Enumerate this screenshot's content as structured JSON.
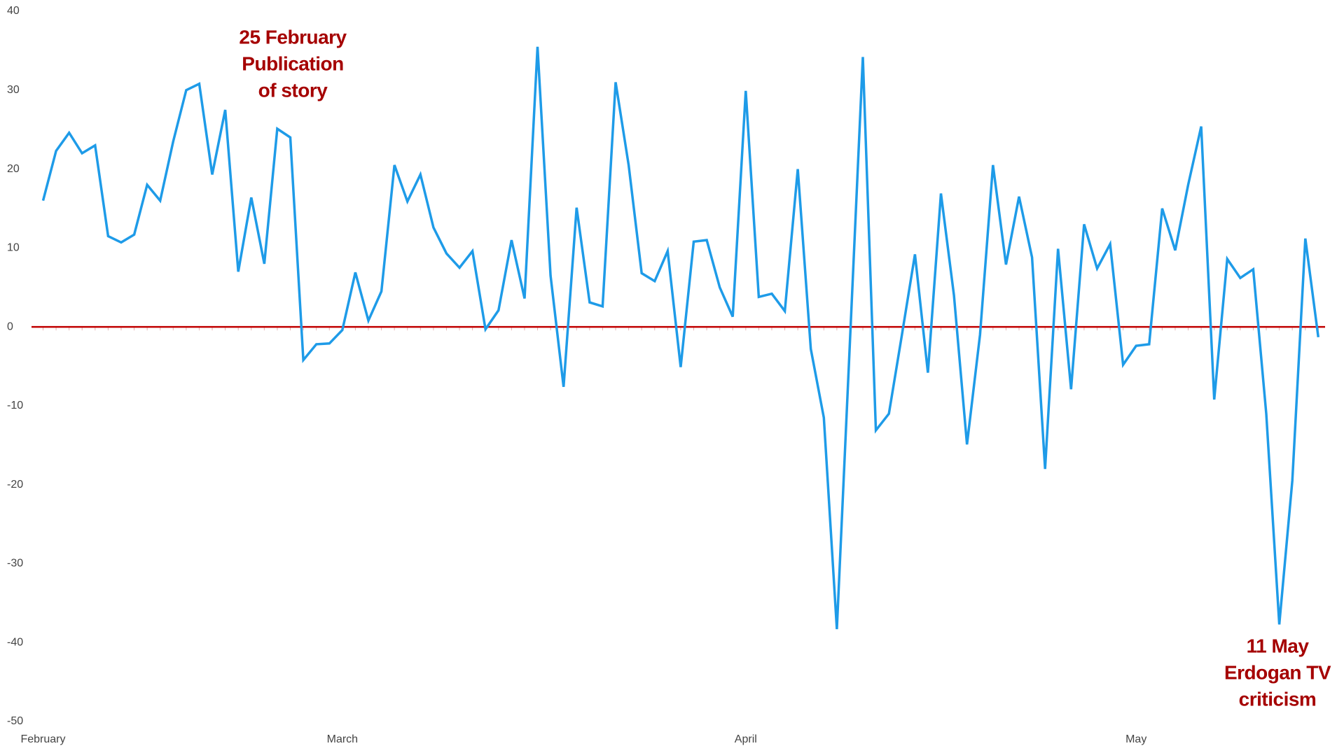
{
  "chart_data": {
    "type": "line",
    "categories": [
      "February",
      null,
      null,
      null,
      null,
      null,
      null,
      null,
      null,
      null,
      null,
      null,
      null,
      null,
      null,
      null,
      null,
      null,
      null,
      null,
      null,
      null,
      null,
      "March",
      null,
      null,
      null,
      null,
      null,
      null,
      null,
      null,
      null,
      null,
      null,
      null,
      null,
      null,
      null,
      null,
      null,
      null,
      null,
      null,
      null,
      null,
      null,
      null,
      null,
      null,
      null,
      null,
      null,
      null,
      "April",
      null,
      null,
      null,
      null,
      null,
      null,
      null,
      null,
      null,
      null,
      null,
      null,
      null,
      null,
      null,
      null,
      null,
      null,
      null,
      null,
      null,
      null,
      null,
      null,
      null,
      null,
      null,
      null,
      null,
      "May",
      null,
      null,
      null,
      null,
      null,
      null,
      null,
      null,
      null,
      null,
      null,
      null,
      null,
      null
    ],
    "series": [
      {
        "color": "#1e9be8",
        "values": [
          16,
          22.3,
          24.6,
          22,
          23,
          11.5,
          10.7,
          11.7,
          18,
          16,
          23.5,
          30,
          30.8,
          19.3,
          27.5,
          7,
          16.4,
          8,
          25.1,
          24,
          -4.2,
          -2.2,
          -2.1,
          -0.4,
          6.9,
          0.8,
          4.5,
          20.5,
          15.9,
          19.3,
          12.6,
          9.3,
          7.5,
          9.6,
          -0.3,
          2.1,
          11,
          3.6,
          35.5,
          6.5,
          -7.6,
          15.1,
          3.1,
          2.6,
          31,
          20.5,
          6.8,
          5.8,
          9.6,
          -5.1,
          10.8,
          11,
          5,
          1.3,
          29.9,
          3.8,
          4.2,
          2,
          20,
          -2.8,
          -11.5,
          -38.3,
          -2,
          34.2,
          -13.1,
          -11,
          -1,
          9.2,
          -5.8,
          16.9,
          4,
          -14.9,
          -1,
          20.5,
          7.9,
          16.5,
          8.8,
          -18,
          9.9,
          -7.9,
          13,
          7.4,
          10.5,
          -4.8,
          -2.4,
          -2.2,
          15,
          9.7,
          18,
          25.4,
          -9.2,
          8.6,
          6.2,
          7.3,
          -11,
          -37.7,
          -19.5,
          11.2,
          -1.3
        ]
      }
    ],
    "ylim": [
      -50,
      40
    ],
    "yticks": [
      -50,
      -40,
      -30,
      -20,
      -10,
      0,
      10,
      20,
      30,
      40
    ],
    "zero_line_color": "#c00000",
    "annotation_color": "#a50000",
    "annotations": [
      {
        "lines": [
          "25 February",
          "Publication",
          "of story"
        ]
      },
      {
        "lines": [
          "11 May",
          "Erdogan TV",
          "criticism"
        ]
      }
    ],
    "grid": false
  }
}
